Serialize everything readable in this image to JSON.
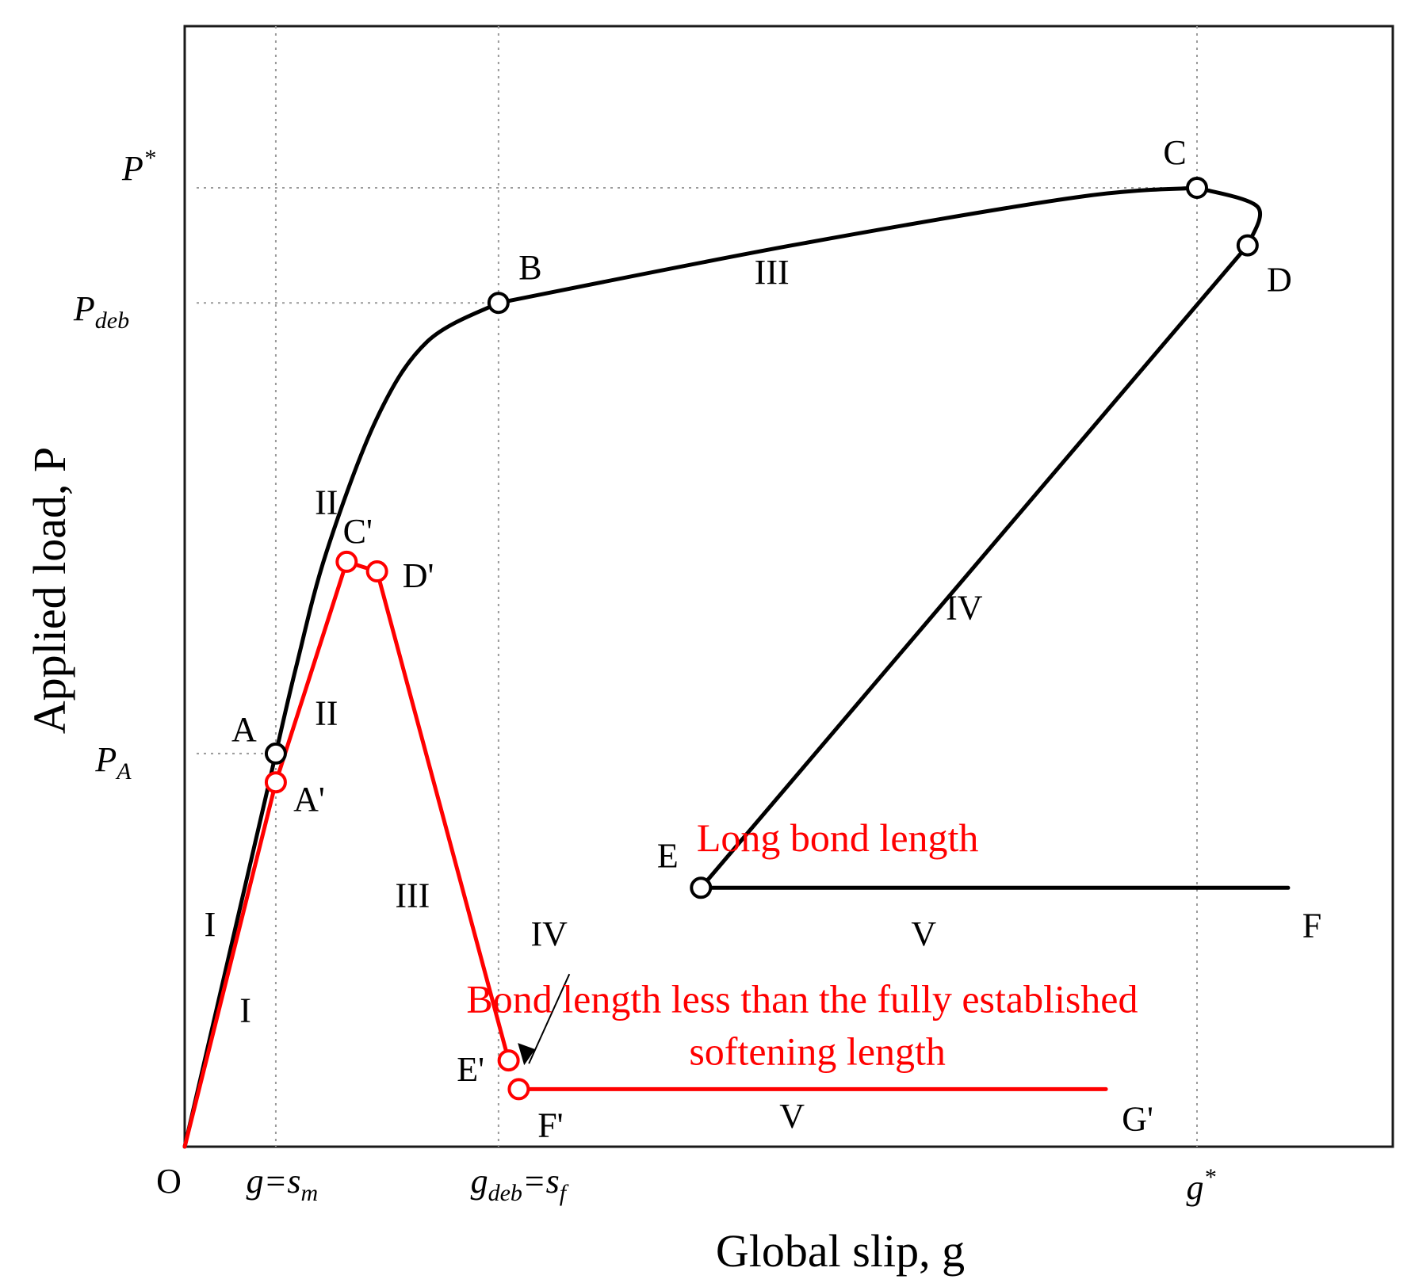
{
  "chart_data": {
    "type": "line",
    "xlabel": "Global slip, g",
    "ylabel": "Applied load, P",
    "xlim": [
      0,
      1.2
    ],
    "ylim": [
      0,
      1.2
    ],
    "grid": "dotted reference lines at named ticks",
    "x_ticks": [
      {
        "label": "O",
        "x": 0
      },
      {
        "label": "g=s_m",
        "x": 0.09
      },
      {
        "label": "g_deb=s_f",
        "x": 0.31
      },
      {
        "label": "g*",
        "x": 1.0
      }
    ],
    "y_ticks": [
      {
        "label": "P*",
        "y": 1.0
      },
      {
        "label": "P_deb",
        "y": 0.88
      },
      {
        "label": "P_A",
        "y": 0.41
      }
    ],
    "series": [
      {
        "name": "Long bond length",
        "color": "#000000",
        "points": [
          {
            "x": 0,
            "y": 0
          },
          {
            "x": 0.09,
            "y": 0.41,
            "label": "A"
          },
          {
            "x": 0.11,
            "y": 0.5
          },
          {
            "x": 0.14,
            "y": 0.62
          },
          {
            "x": 0.19,
            "y": 0.76
          },
          {
            "x": 0.24,
            "y": 0.84
          },
          {
            "x": 0.31,
            "y": 0.88,
            "label": "B"
          },
          {
            "x": 0.6,
            "y": 0.94
          },
          {
            "x": 0.88,
            "y": 0.99
          },
          {
            "x": 1.0,
            "y": 1.0,
            "label": "C"
          },
          {
            "x": 1.06,
            "y": 0.98
          },
          {
            "x": 1.05,
            "y": 0.94,
            "label": "D"
          },
          {
            "x": 0.51,
            "y": 0.27,
            "label": "E"
          },
          {
            "x": 1.09,
            "y": 0.27,
            "label": "F"
          }
        ],
        "segment_labels": [
          "I",
          "II",
          "III",
          "IV",
          "V"
        ]
      },
      {
        "name": "Bond length less than the fully established softening length",
        "color": "#ff0000",
        "points": [
          {
            "x": 0,
            "y": 0
          },
          {
            "x": 0.09,
            "y": 0.38,
            "label": "A'"
          },
          {
            "x": 0.16,
            "y": 0.61,
            "label": "C'"
          },
          {
            "x": 0.19,
            "y": 0.6,
            "label": "D'"
          },
          {
            "x": 0.32,
            "y": 0.09,
            "label": "E'"
          },
          {
            "x": 0.33,
            "y": 0.06,
            "label": "F'"
          },
          {
            "x": 0.91,
            "y": 0.06,
            "label": "G'"
          }
        ],
        "segment_labels": [
          "I",
          "II",
          "III",
          "IV",
          "V"
        ]
      }
    ]
  }
}
